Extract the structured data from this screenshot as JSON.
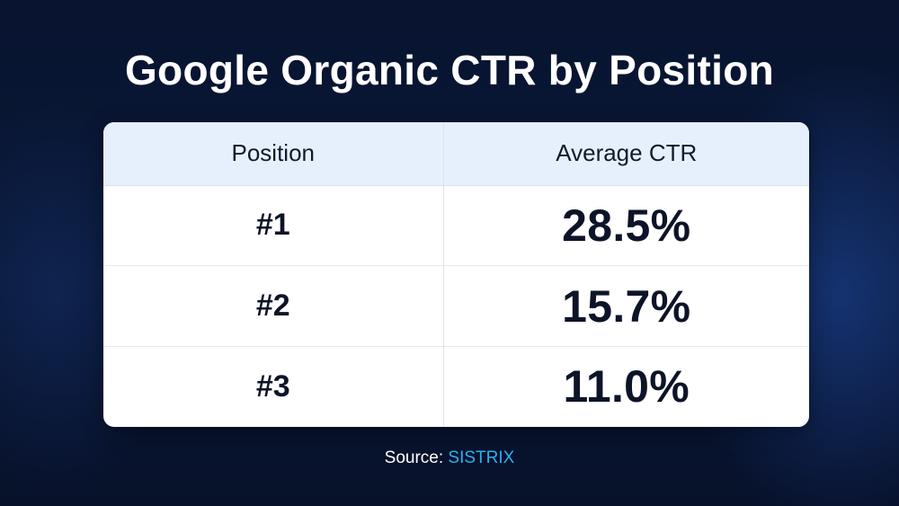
{
  "title": "Google Organic CTR by Position",
  "source": {
    "label": "Source:",
    "name": "SISTRIX"
  },
  "colors": {
    "background": "#0a1836",
    "header_row": "#e6f0fc",
    "source_accent": "#2ab0f0"
  },
  "chart_data": {
    "type": "table",
    "title": "Google Organic CTR by Position",
    "columns": [
      "Position",
      "Average CTR"
    ],
    "rows": [
      {
        "position": "#1",
        "ctr": "28.5%"
      },
      {
        "position": "#2",
        "ctr": "15.7%"
      },
      {
        "position": "#3",
        "ctr": "11.0%"
      }
    ]
  }
}
